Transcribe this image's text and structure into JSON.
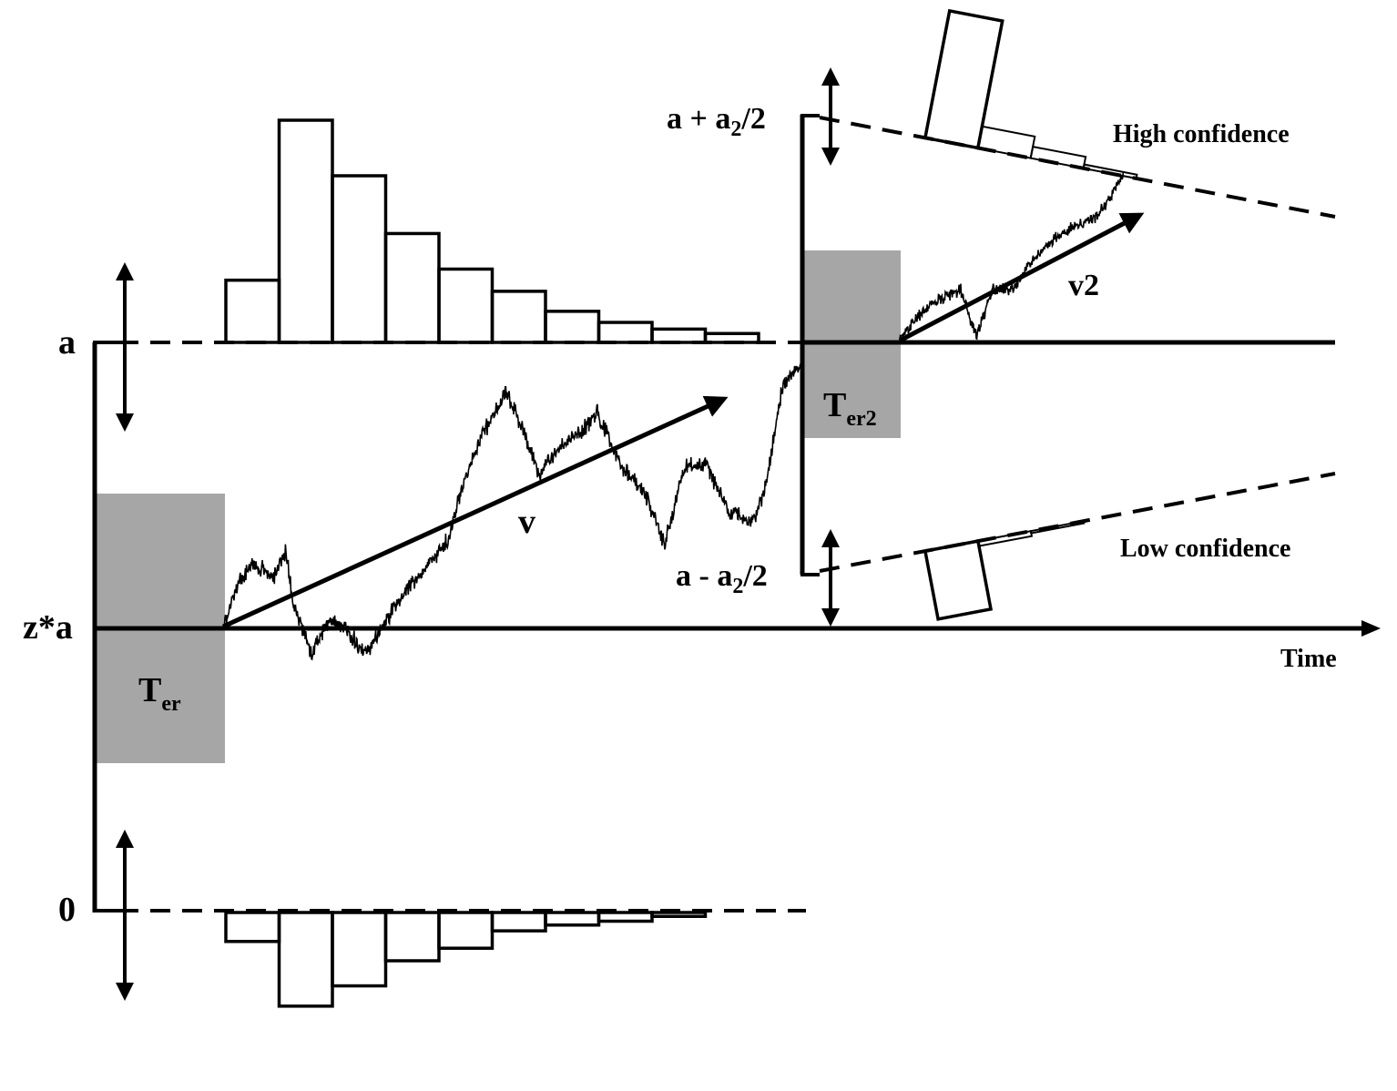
{
  "labels": {
    "boundary_upper": "a",
    "start_point": "z*a",
    "boundary_lower": "0",
    "nondecision_1": {
      "main": "T",
      "sub": "er"
    },
    "nondecision_2": {
      "main": "T",
      "sub": "er2"
    },
    "drift_1": "v",
    "drift_2": "v2",
    "time_axis": "Time",
    "conf_upper": {
      "pre": "a + a",
      "sub": "2",
      "post": "/2"
    },
    "conf_lower": {
      "pre": "a - a",
      "sub": "2",
      "post": "/2"
    },
    "high_confidence": "High confidence",
    "low_confidence": "Low confidence"
  },
  "histograms": {
    "correct_rt_relative_heights": [
      0.28,
      1.0,
      0.75,
      0.49,
      0.33,
      0.23,
      0.14,
      0.09,
      0.06,
      0.04
    ],
    "error_rt_relative_heights": [
      0.3,
      0.97,
      0.76,
      0.5,
      0.37,
      0.19,
      0.13,
      0.09,
      0.04
    ],
    "high_confidence_relative_heights": [
      1.0,
      0.17,
      0.09,
      0.03
    ],
    "low_confidence_relative_heights": [
      0.95,
      0.07,
      0.03
    ]
  },
  "colors": {
    "ink": "#000000",
    "nondecision_box": "#a6a6a6",
    "background": "#ffffff"
  }
}
